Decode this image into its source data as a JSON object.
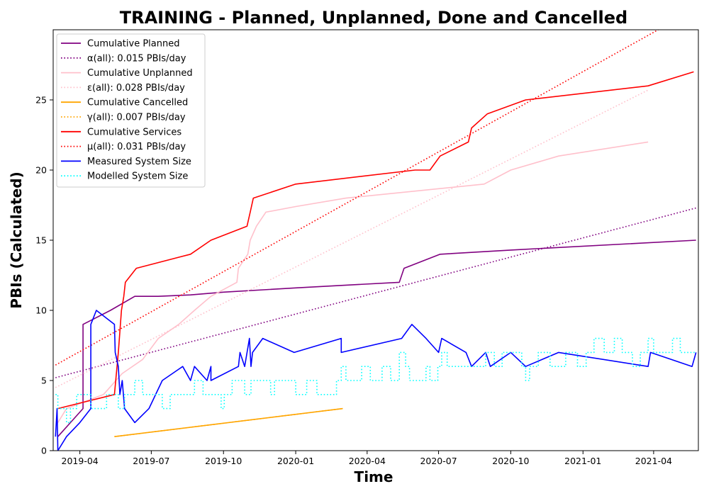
{
  "chart_data": {
    "type": "line",
    "title": "TRAINING - Planned, Unplanned, Done  and Cancelled",
    "xlabel": "Time",
    "ylabel": "PBIs (Calculated)",
    "xlim": [
      "2019-02-26",
      "2021-05-28"
    ],
    "ylim": [
      0,
      30
    ],
    "x_ticks": [
      "2019-04",
      "2019-07",
      "2019-10",
      "2020-01",
      "2020-04",
      "2020-07",
      "2020-10",
      "2021-01",
      "2021-04"
    ],
    "y_ticks": [
      0,
      5,
      10,
      15,
      20,
      25
    ],
    "legend_position": "upper-left",
    "grid": false,
    "series": [
      {
        "name": "Cumulative Planned",
        "color": "#800080",
        "style": "solid",
        "points": [
          [
            "2019-03-04",
            1
          ],
          [
            "2019-03-20",
            2
          ],
          [
            "2019-04-05",
            3
          ],
          [
            "2019-04-05",
            9
          ],
          [
            "2019-05-10",
            10
          ],
          [
            "2019-06-10",
            11
          ],
          [
            "2019-07-10",
            11
          ],
          [
            "2019-08-20",
            11.1
          ],
          [
            "2019-10-01",
            11.3
          ],
          [
            "2020-01-01",
            11.6
          ],
          [
            "2020-05-12",
            12
          ],
          [
            "2020-05-18",
            13
          ],
          [
            "2020-07-03",
            14
          ],
          [
            "2020-10-01",
            14.3
          ],
          [
            "2021-05-25",
            15
          ]
        ]
      },
      {
        "name": "α(all): 0.015 PBIs/day",
        "color": "#800080",
        "style": "dotted",
        "points": [
          [
            "2019-03-01",
            5.2
          ],
          [
            "2021-05-25",
            17.3
          ]
        ]
      },
      {
        "name": "Cumulative Unplanned",
        "color": "#ffc0cb",
        "style": "solid",
        "points": [
          [
            "2019-03-04",
            2
          ],
          [
            "2019-03-15",
            3
          ],
          [
            "2019-05-01",
            4
          ],
          [
            "2019-05-25",
            5.5
          ],
          [
            "2019-06-20",
            6.5
          ],
          [
            "2019-07-10",
            8
          ],
          [
            "2019-08-05",
            9
          ],
          [
            "2019-08-25",
            10
          ],
          [
            "2019-09-15",
            11
          ],
          [
            "2019-10-18",
            12
          ],
          [
            "2019-10-20",
            13
          ],
          [
            "2019-11-01",
            14
          ],
          [
            "2019-11-04",
            15
          ],
          [
            "2019-11-12",
            16
          ],
          [
            "2019-11-24",
            17
          ],
          [
            "2020-01-01",
            17.4
          ],
          [
            "2020-03-05",
            18
          ],
          [
            "2020-08-28",
            19
          ],
          [
            "2020-10-01",
            20
          ],
          [
            "2020-12-01",
            21
          ],
          [
            "2021-03-25",
            22
          ]
        ]
      },
      {
        "name": "ε(all): 0.028 PBIs/day",
        "color": "#ffc0cb",
        "style": "dotted",
        "points": [
          [
            "2019-03-01",
            4.5
          ],
          [
            "2021-03-25",
            25.7
          ]
        ]
      },
      {
        "name": "Cumulative Cancelled",
        "color": "#ffa500",
        "style": "solid",
        "points": [
          [
            "2019-05-15",
            1
          ],
          [
            "2020-03-01",
            3
          ]
        ]
      },
      {
        "name": "γ(all): 0.007 PBIs/day",
        "color": "#ffa500",
        "style": "dotted",
        "points": [
          [
            "2019-05-15",
            1
          ],
          [
            "2020-03-01",
            3
          ]
        ]
      },
      {
        "name": "Cumulative Services",
        "color": "#ff0000",
        "style": "solid",
        "points": [
          [
            "2019-03-04",
            3
          ],
          [
            "2019-05-15",
            4
          ],
          [
            "2019-05-20",
            7
          ],
          [
            "2019-05-24",
            10
          ],
          [
            "2019-05-27",
            11
          ],
          [
            "2019-05-29",
            12
          ],
          [
            "2019-06-12",
            13
          ],
          [
            "2019-08-20",
            14
          ],
          [
            "2019-09-15",
            15
          ],
          [
            "2019-10-31",
            16
          ],
          [
            "2019-11-04",
            17
          ],
          [
            "2019-11-08",
            18
          ],
          [
            "2020-01-01",
            19
          ],
          [
            "2020-06-01",
            20
          ],
          [
            "2020-06-20",
            20
          ],
          [
            "2020-07-03",
            21
          ],
          [
            "2020-08-08",
            22
          ],
          [
            "2020-08-12",
            23
          ],
          [
            "2020-09-01",
            24
          ],
          [
            "2020-10-20",
            25
          ],
          [
            "2021-03-25",
            26
          ],
          [
            "2021-05-22",
            27
          ]
        ]
      },
      {
        "name": "μ(all): 0.031 PBIs/day",
        "color": "#ff0000",
        "style": "dotted",
        "points": [
          [
            "2019-03-01",
            6.1
          ],
          [
            "2021-05-25",
            31.5
          ]
        ]
      },
      {
        "name": "Measured System Size",
        "color": "#0000ff",
        "style": "solid",
        "points": [
          [
            "2019-03-01",
            1
          ],
          [
            "2019-03-03",
            3
          ],
          [
            "2019-03-04",
            0
          ],
          [
            "2019-03-15",
            1
          ],
          [
            "2019-04-01",
            2
          ],
          [
            "2019-04-15",
            3
          ],
          [
            "2019-04-15",
            9
          ],
          [
            "2019-04-22",
            10
          ],
          [
            "2019-05-15",
            9
          ],
          [
            "2019-05-16",
            7
          ],
          [
            "2019-05-20",
            6
          ],
          [
            "2019-05-22",
            4
          ],
          [
            "2019-05-25",
            5
          ],
          [
            "2019-05-28",
            3
          ],
          [
            "2019-06-10",
            2
          ],
          [
            "2019-06-28",
            3
          ],
          [
            "2019-07-15",
            5
          ],
          [
            "2019-08-10",
            6
          ],
          [
            "2019-08-20",
            5
          ],
          [
            "2019-08-25",
            6
          ],
          [
            "2019-09-10",
            5
          ],
          [
            "2019-09-15",
            6
          ],
          [
            "2019-09-15",
            5
          ],
          [
            "2019-10-20",
            6
          ],
          [
            "2019-10-22",
            7
          ],
          [
            "2019-10-28",
            6
          ],
          [
            "2019-11-03",
            8
          ],
          [
            "2019-11-05",
            6
          ],
          [
            "2019-11-07",
            7
          ],
          [
            "2019-11-20",
            8
          ],
          [
            "2019-12-30",
            7
          ],
          [
            "2020-02-28",
            8
          ],
          [
            "2020-02-28",
            7
          ],
          [
            "2020-05-15",
            8
          ],
          [
            "2020-05-28",
            9
          ],
          [
            "2020-06-15",
            8
          ],
          [
            "2020-07-01",
            7
          ],
          [
            "2020-07-05",
            8
          ],
          [
            "2020-08-05",
            7
          ],
          [
            "2020-08-12",
            6
          ],
          [
            "2020-08-30",
            7
          ],
          [
            "2020-09-05",
            6
          ],
          [
            "2020-10-01",
            7
          ],
          [
            "2020-10-20",
            6
          ],
          [
            "2020-12-01",
            7
          ],
          [
            "2021-03-25",
            6
          ],
          [
            "2021-03-28",
            7
          ],
          [
            "2021-05-20",
            6
          ],
          [
            "2021-05-25",
            7
          ]
        ]
      },
      {
        "name": "Modelled System Size",
        "color": "#00ffff",
        "style": "dotted",
        "step": true,
        "points": [
          [
            "2019-03-01",
            4
          ],
          [
            "2019-03-04",
            3
          ],
          [
            "2019-03-12",
            3
          ],
          [
            "2019-03-15",
            2
          ],
          [
            "2019-03-20",
            3
          ],
          [
            "2019-03-28",
            4
          ],
          [
            "2019-04-10",
            4
          ],
          [
            "2019-04-15",
            3
          ],
          [
            "2019-05-01",
            3
          ],
          [
            "2019-05-05",
            4
          ],
          [
            "2019-05-15",
            4
          ],
          [
            "2019-05-20",
            3
          ],
          [
            "2019-05-28",
            4
          ],
          [
            "2019-06-10",
            5
          ],
          [
            "2019-06-20",
            4
          ],
          [
            "2019-07-10",
            4
          ],
          [
            "2019-07-15",
            3
          ],
          [
            "2019-07-25",
            4
          ],
          [
            "2019-08-20",
            4
          ],
          [
            "2019-08-25",
            5
          ],
          [
            "2019-09-05",
            4
          ],
          [
            "2019-09-25",
            4
          ],
          [
            "2019-09-28",
            3
          ],
          [
            "2019-10-02",
            4
          ],
          [
            "2019-10-12",
            5
          ],
          [
            "2019-10-28",
            4
          ],
          [
            "2019-11-05",
            5
          ],
          [
            "2019-11-30",
            4
          ],
          [
            "2019-12-05",
            5
          ],
          [
            "2019-12-25",
            5
          ],
          [
            "2020-01-01",
            4
          ],
          [
            "2020-01-15",
            5
          ],
          [
            "2020-01-28",
            4
          ],
          [
            "2020-02-15",
            4
          ],
          [
            "2020-02-22",
            5
          ],
          [
            "2020-02-28",
            6
          ],
          [
            "2020-03-05",
            5
          ],
          [
            "2020-03-25",
            6
          ],
          [
            "2020-04-05",
            5
          ],
          [
            "2020-04-20",
            6
          ],
          [
            "2020-05-01",
            5
          ],
          [
            "2020-05-12",
            7
          ],
          [
            "2020-05-20",
            6
          ],
          [
            "2020-05-25",
            5
          ],
          [
            "2020-06-15",
            6
          ],
          [
            "2020-06-20",
            5
          ],
          [
            "2020-06-30",
            6
          ],
          [
            "2020-07-05",
            7
          ],
          [
            "2020-07-12",
            6
          ],
          [
            "2020-08-30",
            7
          ],
          [
            "2020-09-10",
            6
          ],
          [
            "2020-09-20",
            7
          ],
          [
            "2020-10-15",
            6
          ],
          [
            "2020-10-20",
            5
          ],
          [
            "2020-10-25",
            6
          ],
          [
            "2020-11-05",
            7
          ],
          [
            "2020-11-20",
            6
          ],
          [
            "2020-12-10",
            7
          ],
          [
            "2020-12-25",
            6
          ],
          [
            "2021-01-05",
            7
          ],
          [
            "2021-01-15",
            8
          ],
          [
            "2021-01-28",
            7
          ],
          [
            "2021-02-10",
            8
          ],
          [
            "2021-02-20",
            7
          ],
          [
            "2021-03-05",
            6
          ],
          [
            "2021-03-15",
            7
          ],
          [
            "2021-03-25",
            8
          ],
          [
            "2021-04-01",
            7
          ],
          [
            "2021-04-25",
            8
          ],
          [
            "2021-05-05",
            7
          ],
          [
            "2021-05-25",
            7
          ]
        ]
      }
    ]
  }
}
